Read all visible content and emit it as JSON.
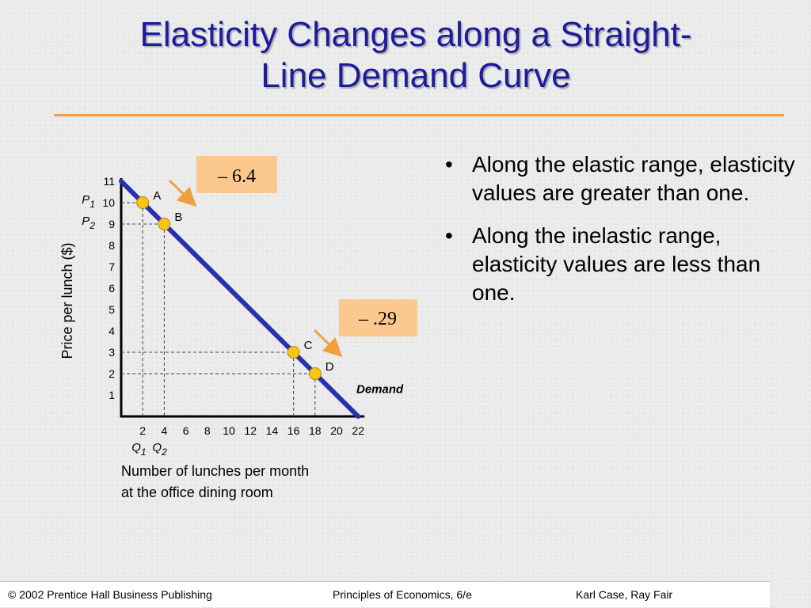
{
  "slide": {
    "title_line1": "Elasticity Changes along a Straight-",
    "title_line2": "Line Demand Curve",
    "bullets": [
      "Along the elastic range, elasticity values are greater than one.",
      "Along the inelastic range, elasticity values are less than one."
    ],
    "bullet_marker": "•"
  },
  "footer": {
    "left": "© 2002 Prentice Hall Business Publishing",
    "center": "Principles of Economics, 6/e",
    "right": "Karl Case, Ray Fair"
  },
  "colors": {
    "title": "#1c1c9c",
    "rule": "#f2a33a",
    "demand_line": "#2a2fae",
    "point": "#f5c518",
    "callout": "#fbc98e",
    "arrow": "#f0a040"
  },
  "chart_data": {
    "type": "line",
    "xlabel_line1": "Number of lunches per month",
    "xlabel_line2": "at the office dining room",
    "ylabel": "Price per lunch ($)",
    "x_ticks": [
      2,
      4,
      6,
      8,
      10,
      12,
      14,
      16,
      18,
      20,
      22
    ],
    "y_ticks": [
      1,
      2,
      3,
      4,
      5,
      6,
      7,
      8,
      9,
      10,
      11
    ],
    "xlim": [
      0,
      22
    ],
    "ylim": [
      0,
      11
    ],
    "demand_line": {
      "label": "Demand",
      "x": [
        0,
        22
      ],
      "y": [
        11,
        0
      ]
    },
    "points": [
      {
        "label": "A",
        "x": 2,
        "y": 10
      },
      {
        "label": "B",
        "x": 4,
        "y": 9
      },
      {
        "label": "C",
        "x": 16,
        "y": 3
      },
      {
        "label": "D",
        "x": 18,
        "y": 2
      }
    ],
    "axis_markers": {
      "p1": {
        "letter": "P",
        "sub": "1",
        "y": 10
      },
      "p2": {
        "letter": "P",
        "sub": "2",
        "y": 9
      },
      "q1": {
        "letter": "Q",
        "sub": "1",
        "x": 2
      },
      "q2": {
        "letter": "Q",
        "sub": "2",
        "x": 4
      }
    },
    "callouts": [
      {
        "text": "– 6.4",
        "from": "A",
        "to": "B"
      },
      {
        "text": "– .29",
        "from": "C",
        "to": "D"
      }
    ]
  }
}
